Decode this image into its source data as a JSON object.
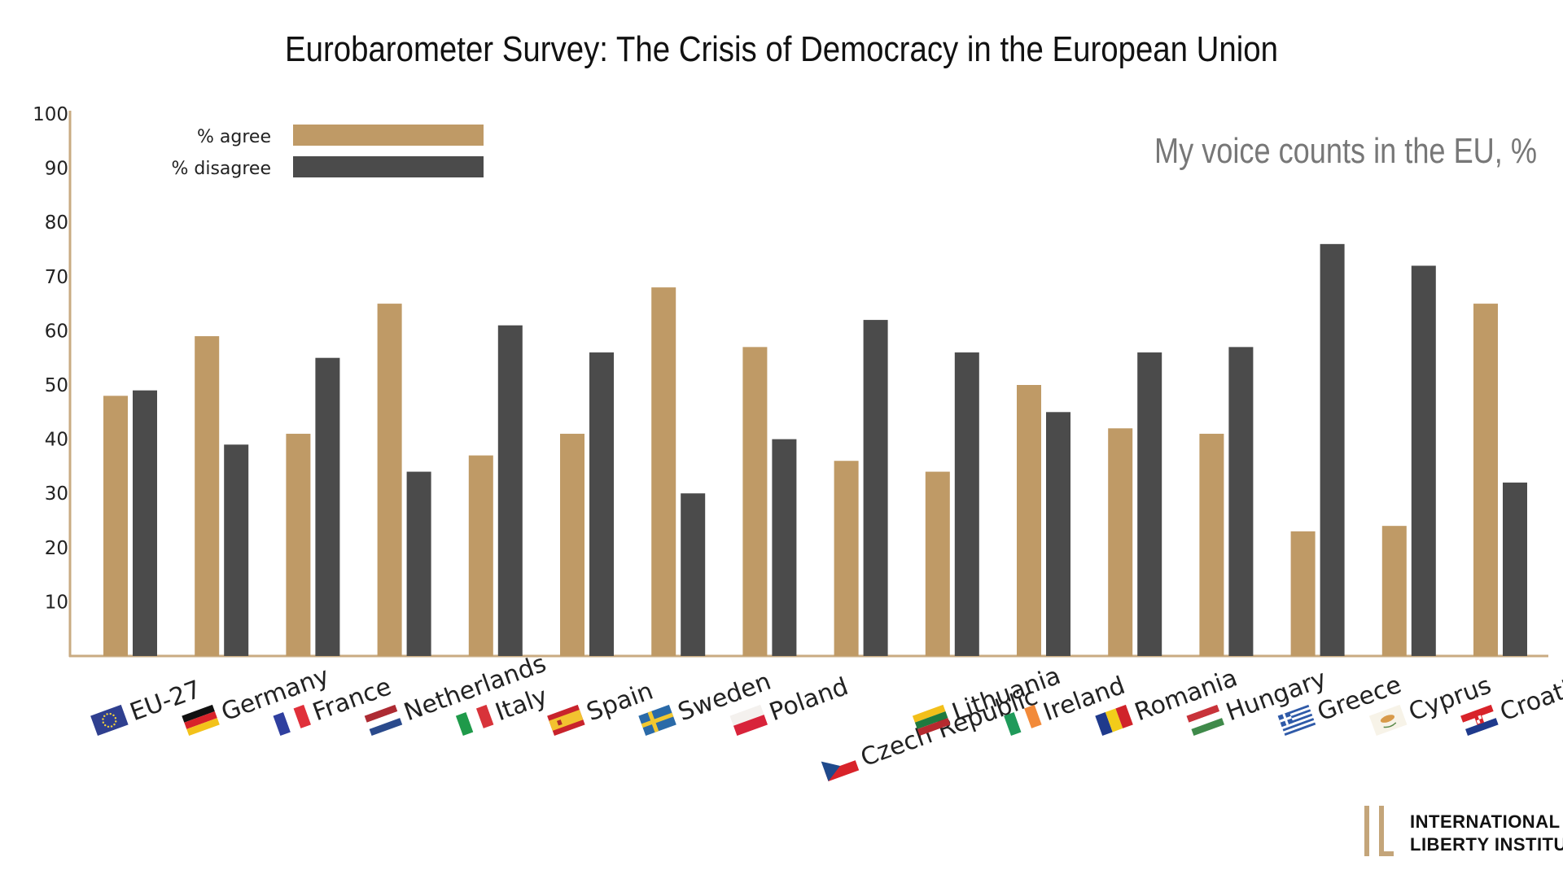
{
  "chart_data": {
    "type": "bar",
    "title": "Eurobarometer Survey: The Crisis of Democracy in the European Union",
    "subtitle": "My voice counts in the EU, %",
    "xlabel": "",
    "ylabel": "",
    "ylim": [
      0,
      100
    ],
    "yticks": [
      10,
      20,
      30,
      40,
      50,
      60,
      70,
      80,
      90,
      100
    ],
    "grid": false,
    "legend_position": "top-left",
    "categories": [
      "EU-27",
      "Germany",
      "France",
      "Netherlands",
      "Italy",
      "Spain",
      "Sweden",
      "Poland",
      "Czech Republic",
      "Lithuania",
      "Ireland",
      "Romania",
      "Hungary",
      "Greece",
      "Cyprus",
      "Croatia"
    ],
    "series": [
      {
        "name": "% agree",
        "color": "#bf9a66",
        "values": [
          48,
          59,
          41,
          65,
          37,
          41,
          68,
          57,
          36,
          34,
          50,
          42,
          41,
          23,
          24,
          65
        ]
      },
      {
        "name": "% disagree",
        "color": "#4b4b4b",
        "values": [
          49,
          39,
          55,
          34,
          61,
          56,
          30,
          40,
          62,
          56,
          45,
          56,
          57,
          76,
          72,
          32
        ]
      }
    ],
    "flags": [
      "eu-flag-icon",
      "germany-flag-icon",
      "france-flag-icon",
      "netherlands-flag-icon",
      "italy-flag-icon",
      "spain-flag-icon",
      "sweden-flag-icon",
      "poland-flag-icon",
      "czech-republic-flag-icon",
      "lithuania-flag-icon",
      "ireland-flag-icon",
      "romania-flag-icon",
      "hungary-flag-icon",
      "greece-flag-icon",
      "cyprus-flag-icon",
      "croatia-flag-icon"
    ]
  },
  "logo": {
    "line1": "International",
    "line2": "Liberty Institute",
    "accent_color": "#c4a57a"
  },
  "colors": {
    "axis": "#c9ab82"
  }
}
